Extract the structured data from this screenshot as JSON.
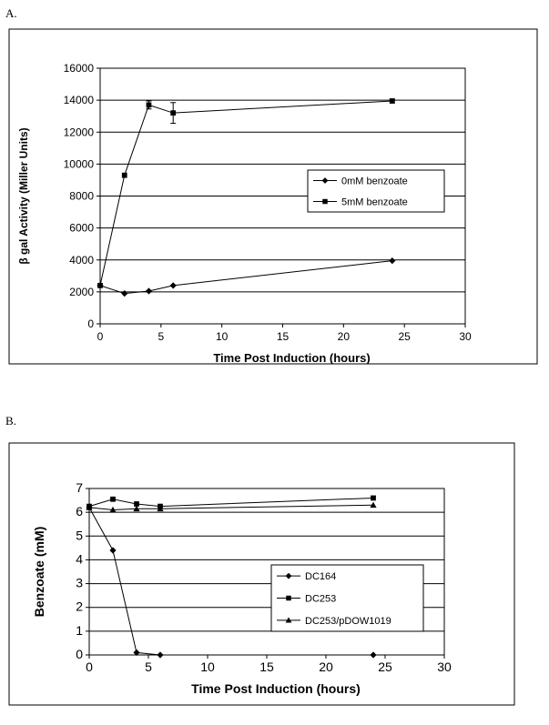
{
  "panels": {
    "a": {
      "label": "A."
    },
    "b": {
      "label": "B."
    }
  },
  "chart_data": [
    {
      "type": "line",
      "xlabel": "Time Post Induction (hours)",
      "ylabel": "β gal Activity (Miller Units)",
      "xlim": [
        0,
        30
      ],
      "ylim": [
        0,
        16000
      ],
      "xticks": [
        0,
        5,
        10,
        15,
        20,
        25,
        30
      ],
      "yticks": [
        0,
        2000,
        4000,
        6000,
        8000,
        10000,
        12000,
        14000,
        16000
      ],
      "grid": "horizontal",
      "legend_position": "center-right",
      "series": [
        {
          "name": "0mM benzoate",
          "marker": "diamond",
          "x": [
            0,
            2,
            4,
            6,
            24
          ],
          "y": [
            2400,
            1900,
            2050,
            2400,
            3950
          ],
          "err": [
            0,
            0,
            0,
            0,
            0
          ]
        },
        {
          "name": "5mM benzoate",
          "marker": "square",
          "x": [
            0,
            2,
            4,
            6,
            24
          ],
          "y": [
            2400,
            9300,
            13700,
            13200,
            13950
          ],
          "err": [
            0,
            0,
            250,
            650,
            120
          ]
        }
      ]
    },
    {
      "type": "line",
      "xlabel": "Time Post Induction (hours)",
      "ylabel": "Benzoate (mM)",
      "xlim": [
        0,
        30
      ],
      "ylim": [
        0,
        7
      ],
      "xticks": [
        0,
        5,
        10,
        15,
        20,
        25,
        30
      ],
      "yticks": [
        0,
        1,
        2,
        3,
        4,
        5,
        6,
        7
      ],
      "grid": "horizontal",
      "legend_position": "center-right",
      "series": [
        {
          "name": "DC164",
          "marker": "diamond",
          "x": [
            0,
            2,
            4,
            6,
            24
          ],
          "y": [
            6.2,
            4.4,
            0.1,
            0.0,
            0.0
          ]
        },
        {
          "name": "DC253",
          "marker": "square",
          "x": [
            0,
            2,
            4,
            6,
            24
          ],
          "y": [
            6.25,
            6.55,
            6.35,
            6.25,
            6.6
          ]
        },
        {
          "name": "DC253/pDOW1019",
          "marker": "triangle",
          "x": [
            0,
            2,
            4,
            6,
            24
          ],
          "y": [
            6.2,
            6.1,
            6.15,
            6.15,
            6.3
          ]
        }
      ]
    }
  ]
}
